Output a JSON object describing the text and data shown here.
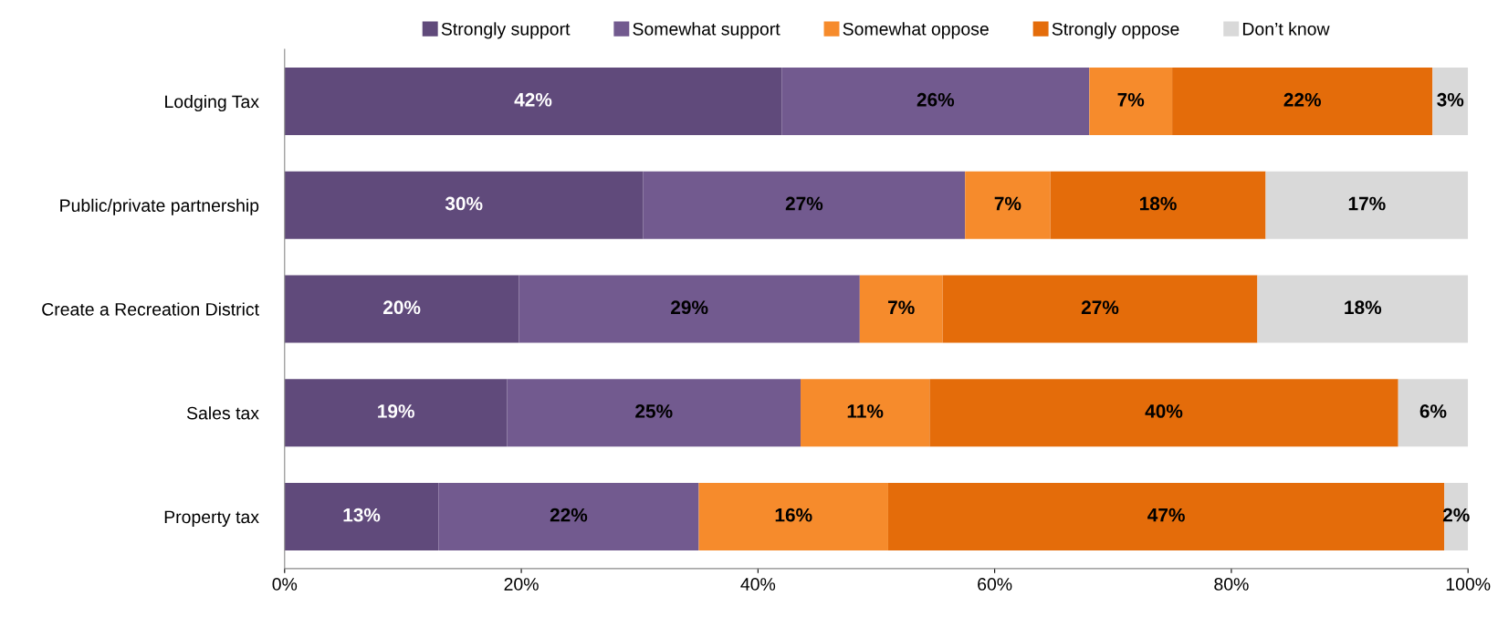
{
  "chart_data": {
    "type": "bar",
    "orientation": "horizontal",
    "stacked": true,
    "legend": "top",
    "grid": false,
    "categories": [
      "Lodging Tax",
      "Public/private partnership",
      "Create a Recreation District",
      "Sales tax",
      "Property tax"
    ],
    "series": [
      {
        "name": "Strongly support",
        "color": "#604a7b",
        "values": [
          42,
          30.3,
          19.8,
          18.8,
          13
        ],
        "value_labels": [
          "42%",
          "30%",
          "20%",
          "19%",
          "13%"
        ]
      },
      {
        "name": "Somewhat support",
        "color": "#725a8f",
        "values": [
          26,
          27.2,
          28.8,
          24.8,
          22
        ],
        "value_labels": [
          "26%",
          "27%",
          "29%",
          "25%",
          "22%"
        ]
      },
      {
        "name": "Somewhat oppose",
        "color": "#f68b2c",
        "values": [
          7,
          7.2,
          7,
          10.9,
          16
        ],
        "value_labels": [
          "7%",
          "7%",
          "7%",
          "11%",
          "16%"
        ]
      },
      {
        "name": "Strongly oppose",
        "color": "#e46c0a",
        "values": [
          22,
          18.2,
          26.6,
          39.6,
          47
        ],
        "value_labels": [
          "22%",
          "18%",
          "27%",
          "40%",
          "47%"
        ]
      },
      {
        "name": "Don’t know",
        "color": "#d9d9d9",
        "values": [
          3,
          17.1,
          17.8,
          5.9,
          2
        ],
        "value_labels": [
          "3%",
          "17%",
          "18%",
          "6%",
          "2%"
        ]
      }
    ],
    "xlim": [
      0,
      100
    ],
    "xticks": [
      {
        "value": 0,
        "label": "0%"
      },
      {
        "value": 20,
        "label": "20%"
      },
      {
        "value": 40,
        "label": "40%"
      },
      {
        "value": 60,
        "label": "60%"
      },
      {
        "value": 80,
        "label": "80%"
      },
      {
        "value": 100,
        "label": "100%"
      }
    ]
  }
}
